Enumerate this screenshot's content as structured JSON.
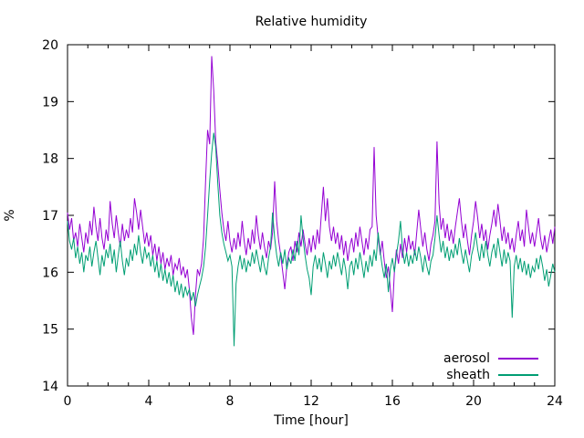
{
  "chart_data": {
    "type": "line",
    "title": "Relative humidity",
    "xlabel": "Time [hour]",
    "ylabel": "%",
    "xlim": [
      0,
      24
    ],
    "ylim": [
      14,
      20
    ],
    "x_ticks": [
      0,
      4,
      8,
      12,
      16,
      20,
      24
    ],
    "x_minor_step": 1,
    "y_ticks": [
      14,
      15,
      16,
      17,
      18,
      19,
      20
    ],
    "grid": false,
    "legend_position": "bottom-right-inside",
    "text_color": "#000000",
    "axis_color": "#000000",
    "x_start": 0,
    "x_step": 0.1,
    "series": [
      {
        "name": "aerosol",
        "color": "#9400d3",
        "values": [
          17.05,
          16.75,
          16.95,
          16.55,
          16.7,
          16.45,
          16.85,
          16.6,
          16.35,
          16.7,
          16.5,
          16.9,
          16.65,
          17.15,
          16.8,
          16.55,
          16.95,
          16.6,
          16.4,
          16.75,
          16.55,
          17.25,
          16.85,
          16.6,
          17.0,
          16.7,
          16.45,
          16.85,
          16.55,
          16.75,
          16.6,
          16.95,
          16.7,
          17.3,
          17.05,
          16.75,
          17.1,
          16.8,
          16.5,
          16.7,
          16.45,
          16.65,
          16.3,
          16.5,
          16.2,
          16.45,
          16.15,
          16.35,
          16.05,
          16.25,
          16.1,
          16.3,
          15.95,
          16.15,
          16.05,
          16.25,
          15.95,
          16.1,
          15.9,
          16.05,
          15.7,
          15.2,
          14.9,
          15.6,
          16.05,
          15.95,
          16.15,
          16.6,
          17.6,
          18.5,
          18.25,
          19.8,
          19.2,
          18.3,
          17.9,
          17.45,
          17.05,
          16.75,
          16.55,
          16.9,
          16.55,
          16.35,
          16.6,
          16.4,
          16.7,
          16.45,
          16.9,
          16.55,
          16.3,
          16.6,
          16.4,
          16.75,
          16.5,
          17.0,
          16.65,
          16.4,
          16.7,
          16.45,
          16.25,
          16.55,
          16.4,
          16.7,
          17.6,
          16.9,
          16.55,
          16.3,
          16.0,
          15.7,
          16.1,
          16.35,
          16.45,
          16.2,
          16.55,
          16.35,
          16.7,
          16.45,
          16.75,
          16.5,
          16.3,
          16.6,
          16.35,
          16.65,
          16.4,
          16.75,
          16.5,
          17.0,
          17.5,
          16.9,
          17.3,
          16.8,
          16.55,
          16.8,
          16.5,
          16.7,
          16.4,
          16.65,
          16.3,
          16.55,
          16.2,
          16.45,
          16.6,
          16.35,
          16.7,
          16.45,
          16.8,
          16.55,
          16.3,
          16.6,
          16.4,
          16.75,
          16.8,
          18.2,
          17.0,
          16.6,
          16.3,
          16.55,
          16.2,
          15.9,
          16.1,
          15.7,
          15.3,
          16.0,
          16.4,
          16.15,
          16.5,
          16.25,
          16.6,
          16.35,
          16.65,
          16.4,
          16.55,
          16.3,
          16.7,
          17.1,
          16.75,
          16.45,
          16.7,
          16.4,
          16.2,
          16.5,
          16.65,
          16.9,
          18.3,
          17.2,
          16.75,
          16.95,
          16.6,
          16.85,
          16.55,
          16.75,
          16.5,
          16.8,
          17.05,
          17.3,
          16.9,
          16.6,
          16.85,
          16.55,
          16.3,
          16.65,
          16.9,
          17.25,
          16.95,
          16.6,
          16.85,
          16.55,
          16.75,
          16.4,
          16.65,
          16.85,
          17.1,
          16.8,
          17.2,
          16.9,
          16.55,
          16.8,
          16.5,
          16.7,
          16.4,
          16.6,
          16.35,
          16.65,
          16.9,
          16.55,
          16.75,
          16.45,
          17.1,
          16.8,
          16.5,
          16.7,
          16.45,
          16.7,
          16.95,
          16.6,
          16.4,
          16.65,
          16.35,
          16.55,
          16.75,
          16.5,
          16.8
        ]
      },
      {
        "name": "sheath",
        "color": "#009e73",
        "values": [
          16.9,
          16.55,
          16.4,
          16.6,
          16.25,
          16.45,
          16.15,
          16.35,
          16.0,
          16.3,
          16.2,
          16.45,
          16.1,
          16.35,
          16.55,
          16.25,
          15.95,
          16.3,
          16.1,
          16.4,
          16.25,
          16.5,
          16.15,
          16.4,
          16.0,
          16.3,
          16.55,
          16.2,
          15.95,
          16.25,
          16.1,
          16.4,
          16.2,
          16.5,
          16.3,
          16.65,
          16.35,
          16.15,
          16.45,
          16.25,
          16.35,
          16.1,
          16.3,
          16.0,
          16.2,
          15.9,
          16.15,
          15.85,
          16.05,
          15.8,
          16.0,
          15.75,
          15.95,
          15.65,
          15.85,
          15.6,
          15.8,
          15.55,
          15.75,
          15.6,
          15.7,
          15.5,
          15.65,
          15.4,
          15.6,
          15.75,
          15.9,
          16.1,
          16.45,
          17.0,
          17.6,
          18.1,
          18.45,
          18.2,
          17.55,
          17.0,
          16.7,
          16.5,
          16.35,
          16.2,
          16.3,
          16.1,
          14.7,
          15.8,
          16.1,
          16.3,
          16.05,
          16.25,
          16.0,
          16.2,
          16.1,
          16.35,
          16.15,
          16.4,
          16.2,
          16.0,
          16.3,
          16.1,
          15.95,
          16.25,
          16.45,
          17.05,
          16.6,
          16.3,
          16.1,
          16.35,
          16.15,
          16.4,
          16.05,
          16.25,
          16.15,
          16.4,
          16.2,
          16.55,
          16.3,
          17.0,
          16.6,
          16.3,
          16.05,
          15.9,
          15.6,
          16.1,
          16.3,
          16.05,
          16.25,
          16.0,
          16.35,
          16.15,
          15.9,
          16.2,
          16.05,
          16.3,
          16.1,
          16.35,
          16.15,
          15.95,
          16.25,
          16.05,
          15.7,
          16.1,
          16.2,
          15.95,
          16.25,
          16.05,
          16.35,
          16.15,
          15.9,
          16.2,
          16.0,
          16.3,
          16.1,
          16.4,
          16.2,
          16.7,
          16.35,
          16.1,
          15.9,
          16.15,
          15.65,
          16.05,
          16.25,
          16.0,
          16.3,
          16.55,
          16.9,
          16.4,
          16.15,
          16.35,
          16.1,
          16.3,
          16.15,
          16.4,
          16.2,
          16.45,
          16.25,
          16.0,
          16.3,
          16.1,
          15.95,
          16.2,
          16.3,
          16.6,
          17.0,
          16.65,
          16.35,
          16.55,
          16.25,
          16.45,
          16.2,
          16.4,
          16.25,
          16.5,
          16.3,
          16.6,
          16.35,
          16.15,
          16.4,
          16.2,
          16.0,
          16.3,
          16.45,
          16.7,
          16.4,
          16.2,
          16.5,
          16.25,
          16.55,
          16.3,
          16.1,
          16.35,
          16.5,
          16.25,
          16.6,
          16.35,
          16.1,
          16.4,
          16.15,
          16.35,
          16.2,
          15.2,
          16.1,
          16.3,
          16.05,
          16.25,
          16.0,
          16.2,
          15.95,
          16.15,
          15.9,
          16.1,
          16.0,
          16.25,
          16.05,
          16.3,
          16.1,
          15.85,
          16.05,
          15.75,
          15.95,
          16.15,
          16.0
        ]
      }
    ]
  }
}
